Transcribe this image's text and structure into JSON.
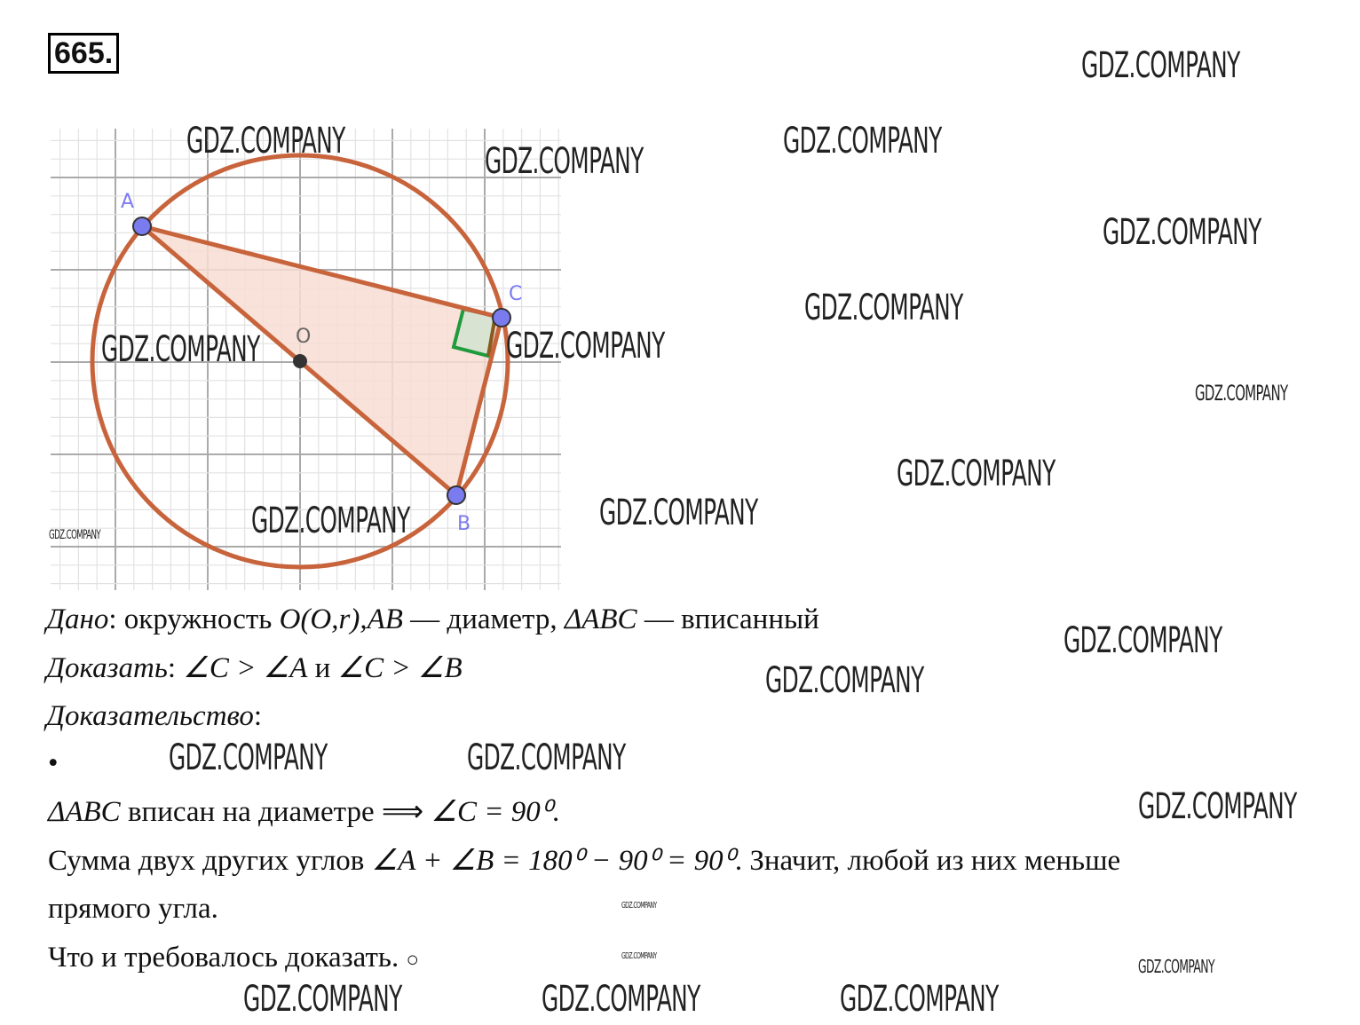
{
  "problem_number": "665.",
  "figure": {
    "labels": {
      "A": "A",
      "B": "B",
      "C": "C",
      "O": "O"
    },
    "colors": {
      "circle": "#c8643c",
      "fill": "#f7ddd2",
      "point": "#7b7bf0",
      "center": "#333333",
      "right_angle": "#1f9a3c",
      "label": "#7b7bf0",
      "grid": "#d6d6d6"
    }
  },
  "text": {
    "given_label": "Дано",
    "given_body_1": ": окружность ",
    "given_math_1": "O(O,r),AB",
    "given_body_2": " — диаметр, ",
    "given_math_2": "ΔABC",
    "given_body_3": " — вписанный",
    "prove_label": "Доказать",
    "prove_body_1": ": ",
    "prove_math_1": "∠C > ∠A",
    "prove_body_2": " и ",
    "prove_math_2": "∠C > ∠B",
    "proof_label": "Доказательство",
    "proof_colon": ":",
    "bullet": "•",
    "step1_math": "ΔABC",
    "step1_body": " вписан на диаметре ⟹ ",
    "step1_math_2": "∠C = 90⁰",
    "step1_end": ".",
    "step2_body_1": "Сумма двух других углов ",
    "step2_math": "∠A + ∠B = 180⁰ − 90⁰ = 90⁰",
    "step2_body_2": ". Значит, любой из них меньше",
    "step2_body_3": "прямого угла.",
    "conclusion": "Что и требовалось доказать. ",
    "qed": "○"
  },
  "watermark": "GDZ.COMPANY"
}
